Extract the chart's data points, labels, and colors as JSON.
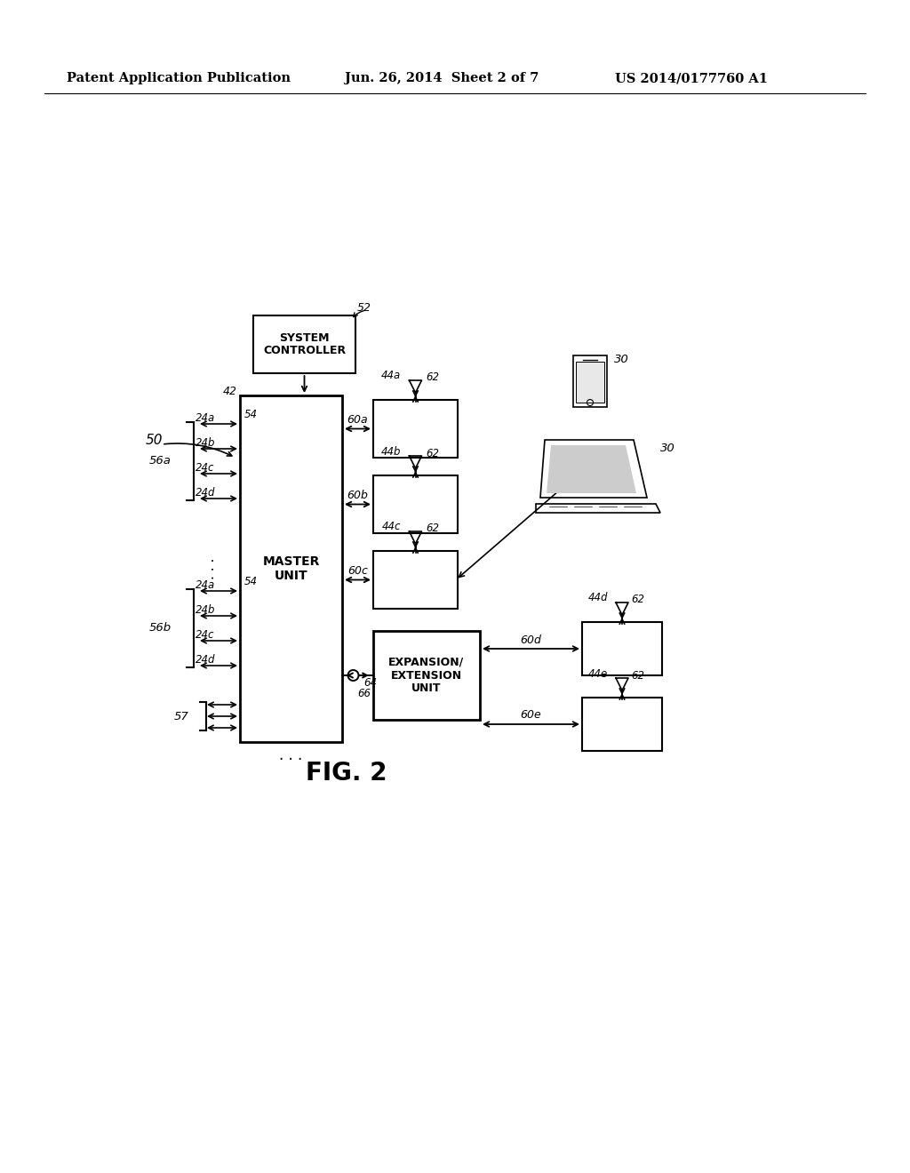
{
  "bg_color": "#ffffff",
  "header_left": "Patent Application Publication",
  "header_mid": "Jun. 26, 2014  Sheet 2 of 7",
  "header_right": "US 2014/0177760 A1",
  "fig_label": "FIG. 2",
  "sc_label": "52",
  "master_text": "MASTER\nUNIT",
  "expansion_text": "EXPANSION/\nEXTENSION\nUNIT",
  "sc_text": "SYSTEM\nCONTROLLER",
  "label_42": "42",
  "label_54a": "54",
  "label_54b": "54",
  "label_56a": "56a",
  "label_56b": "56b",
  "label_57": "57",
  "label_50": "50",
  "ch_labels_a": [
    "24a",
    "24b",
    "24c",
    "24d"
  ],
  "ch_labels_b": [
    "24a",
    "24b",
    "24c",
    "24d"
  ],
  "label_60a": "60a",
  "label_60b": "60b",
  "label_60c": "60c",
  "label_60d": "60d",
  "label_60e": "60e",
  "label_66": "66",
  "label_64": "64",
  "label_44a": "44a",
  "label_44b": "44b",
  "label_44c": "44c",
  "label_44d": "44d",
  "label_44e": "44e",
  "label_62": "62",
  "label_30": "30"
}
